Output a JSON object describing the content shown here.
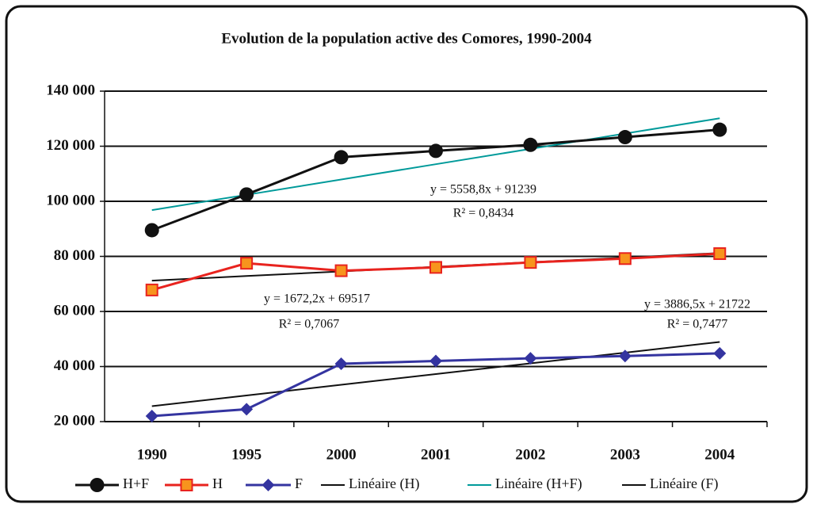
{
  "chart_data": {
    "type": "line",
    "title": "Evolution de la population active des Comores, 1990-2004",
    "categories": [
      "1990",
      "1995",
      "2000",
      "2001",
      "2002",
      "2003",
      "2004"
    ],
    "series": [
      {
        "name": "H+F",
        "color": "#111111",
        "marker": "circle",
        "values": [
          89500,
          102500,
          116000,
          118300,
          120500,
          123300,
          126000
        ]
      },
      {
        "name": "H",
        "color": "#e8231e",
        "marker": "square",
        "values": [
          67800,
          77500,
          74800,
          76000,
          77800,
          79200,
          81000
        ]
      },
      {
        "name": "F",
        "color": "#3434a0",
        "marker": "diamond",
        "values": [
          22000,
          24500,
          41000,
          42000,
          43000,
          43800,
          44800
        ]
      },
      {
        "name": "Linéaire (H)",
        "color": "#111111",
        "marker": "none",
        "values": [
          71189,
          72862,
          74534,
          76206,
          77878,
          79550,
          81222
        ]
      },
      {
        "name": "Linéaire (H+F)",
        "color": "#009a9a",
        "marker": "none",
        "values": [
          96798,
          102357,
          107916,
          113474,
          119033,
          124592,
          130151
        ]
      },
      {
        "name": "Linéaire (F)",
        "color": "#111111",
        "marker": "none",
        "values": [
          25609,
          29495,
          33382,
          37268,
          41155,
          45041,
          48928
        ]
      }
    ],
    "annotations": [
      "y = 5558,8x + 91239",
      "R² = 0,8434",
      "y = 1672,2x + 69517",
      "R² = 0,7067",
      "y = 3886,5x + 21722",
      "R² = 0,7477"
    ],
    "ylim": [
      20000,
      140000
    ],
    "yticks": [
      {
        "value": 20000,
        "label": "20 000"
      },
      {
        "value": 40000,
        "label": "40 000"
      },
      {
        "value": 60000,
        "label": "60 000"
      },
      {
        "value": 80000,
        "label": "80 000"
      },
      {
        "value": 100000,
        "label": "100 000"
      },
      {
        "value": 120000,
        "label": "120 000"
      },
      {
        "value": 140000,
        "label": "140 000"
      }
    ],
    "grid": true,
    "legend": "bottom"
  }
}
